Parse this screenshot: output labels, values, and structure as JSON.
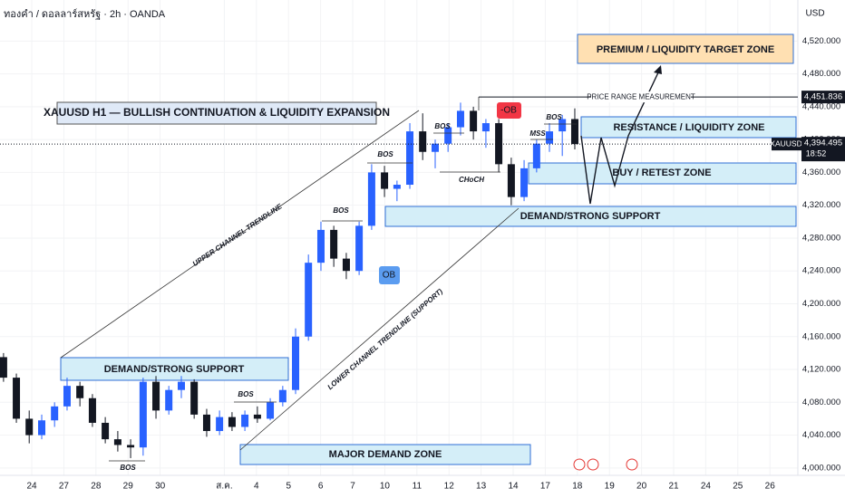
{
  "header": {
    "symbol_line": "ทองคำ / ดอลลาร์สหรัฐ · 2h · OANDA",
    "currency": "USD"
  },
  "annotations": {
    "title": "XAUUSD H1 — BULLISH CONTINUATION & LIQUIDITY EXPANSION",
    "premium": "PREMIUM / LIQUIDITY TARGET ZONE",
    "range": "PRICE RANGE MEASUREMENT",
    "resistance": "RESISTANCE / LIQUIDITY ZONE",
    "retest": "BUY / RETEST ZONE",
    "demand_right": "DEMAND/STRONG SUPPORT",
    "demand_left": "DEMAND/STRONG SUPPORT",
    "major": "MAJOR DEMAND ZONE",
    "upper": "UPPER CHANNEL TRENDLINE",
    "lower": "LOWER CHANNEL TRENDLINE (SUPPORT)",
    "bos": [
      "BOS",
      "BOS",
      "BOS",
      "BOS",
      "BOS",
      "BOS"
    ],
    "choch": "CHoCH",
    "mss": "MSS",
    "neg_ob": "-OB",
    "ob": "OB",
    "symbol_tag": "XAUUSD",
    "time_tag": "18:52"
  },
  "chart_data": {
    "type": "candlestick",
    "up_color": "#2962ff",
    "down_color": "#131722",
    "xlim": [
      -0.99,
      23.87
    ],
    "ylim": [
      3991,
      4570
    ],
    "xticks": [
      {
        "value": 0,
        "label": "24"
      },
      {
        "value": 1,
        "label": "27"
      },
      {
        "value": 2,
        "label": "28"
      },
      {
        "value": 3,
        "label": "29"
      },
      {
        "value": 4,
        "label": "30"
      },
      {
        "value": 6,
        "label": "ส.ค."
      },
      {
        "value": 7,
        "label": "4"
      },
      {
        "value": 8,
        "label": "5"
      },
      {
        "value": 9,
        "label": "6"
      },
      {
        "value": 10,
        "label": "7"
      },
      {
        "value": 11,
        "label": "10"
      },
      {
        "value": 12,
        "label": "11"
      },
      {
        "value": 13,
        "label": "12"
      },
      {
        "value": 14,
        "label": "13"
      },
      {
        "value": 15,
        "label": "14"
      },
      {
        "value": 16,
        "label": "17"
      },
      {
        "value": 17,
        "label": "18"
      },
      {
        "value": 18,
        "label": "19"
      },
      {
        "value": 19,
        "label": "20"
      },
      {
        "value": 20,
        "label": "21"
      },
      {
        "value": 21,
        "label": "24"
      },
      {
        "value": 22,
        "label": "25"
      },
      {
        "value": 23,
        "label": "26"
      }
    ],
    "yticks": [
      {
        "value": 4000,
        "label": "4,000.000"
      },
      {
        "value": 4040,
        "label": "4,040.000"
      },
      {
        "value": 4080,
        "label": "4,080.000"
      },
      {
        "value": 4120,
        "label": "4,120.000"
      },
      {
        "value": 4160,
        "label": "4,160.000"
      },
      {
        "value": 4200,
        "label": "4,200.000"
      },
      {
        "value": 4240,
        "label": "4,240.000"
      },
      {
        "value": 4280,
        "label": "4,280.000"
      },
      {
        "value": 4320,
        "label": "4,320.000"
      },
      {
        "value": 4360,
        "label": "4,360.000"
      },
      {
        "value": 4400,
        "label": "4,400.000"
      },
      {
        "value": 4440,
        "label": "4,440.000"
      },
      {
        "value": 4480,
        "label": "4,480.000"
      },
      {
        "value": 4520,
        "label": "4,520.000"
      }
    ],
    "last_price": {
      "value": 4394.495,
      "label": "4,394.495"
    },
    "range_level": {
      "value": 4451.836,
      "label": "4,451.836"
    },
    "x": [
      -0.88,
      -0.48,
      -0.08,
      0.31,
      0.71,
      1.1,
      1.5,
      1.89,
      2.29,
      2.68,
      3.08,
      3.47,
      3.87,
      4.27,
      4.66,
      5.06,
      5.45,
      5.85,
      6.24,
      6.64,
      7.03,
      7.43,
      7.82,
      8.22,
      8.62,
      9.01,
      9.41,
      9.8,
      10.2,
      10.59,
      10.99,
      11.38,
      11.78,
      12.18,
      12.57,
      12.97,
      13.36,
      13.76,
      14.15,
      14.55,
      14.94,
      15.34,
      15.73,
      16.13,
      16.53,
      16.92
    ],
    "open": [
      4135,
      4110,
      4060,
      4040,
      4058,
      4075,
      4100,
      4085,
      4055,
      4035,
      4028,
      4025,
      4105,
      4070,
      4095,
      4105,
      4065,
      4045,
      4062,
      4050,
      4065,
      4060,
      4080,
      4095,
      4160,
      4250,
      4290,
      4255,
      4240,
      4295,
      4360,
      4340,
      4345,
      4410,
      4385,
      4395,
      4415,
      4435,
      4410,
      4420,
      4370,
      4330,
      4365,
      4395,
      4410,
      4425
    ],
    "high": [
      4140,
      4115,
      4070,
      4065,
      4080,
      4110,
      4105,
      4090,
      4062,
      4045,
      4035,
      4110,
      4112,
      4100,
      4112,
      4108,
      4072,
      4070,
      4068,
      4070,
      4075,
      4085,
      4100,
      4170,
      4260,
      4300,
      4295,
      4262,
      4300,
      4370,
      4368,
      4350,
      4420,
      4432,
      4400,
      4420,
      4445,
      4440,
      4425,
      4425,
      4378,
      4375,
      4400,
      4420,
      4430,
      4438
    ],
    "low": [
      4105,
      4055,
      4030,
      4035,
      4050,
      4070,
      4075,
      4050,
      4030,
      4020,
      4012,
      4015,
      4060,
      4065,
      4085,
      4060,
      4038,
      4040,
      4045,
      4045,
      4055,
      4058,
      4075,
      4090,
      4155,
      4240,
      4245,
      4230,
      4235,
      4290,
      4330,
      4325,
      4340,
      4375,
      4365,
      4385,
      4405,
      4400,
      4390,
      4360,
      4320,
      4325,
      4360,
      4385,
      4380,
      4388
    ],
    "close": [
      4110,
      4060,
      4040,
      4058,
      4075,
      4100,
      4085,
      4055,
      4035,
      4028,
      4025,
      4105,
      4070,
      4095,
      4105,
      4065,
      4045,
      4062,
      4050,
      4065,
      4060,
      4080,
      4095,
      4160,
      4250,
      4290,
      4255,
      4240,
      4295,
      4360,
      4340,
      4345,
      4410,
      4385,
      4395,
      4415,
      4435,
      4410,
      4420,
      4370,
      4330,
      4365,
      4395,
      4410,
      4425,
      4394.495
    ]
  }
}
